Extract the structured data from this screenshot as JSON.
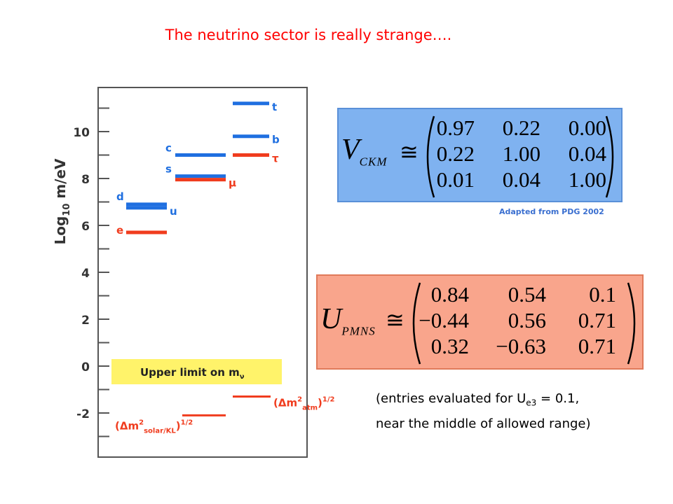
{
  "title": "The neutrino sector is really strange….",
  "colors": {
    "title": "#ff0000",
    "quark": "#1f6fe0",
    "lepton": "#f03c1e",
    "frame": "#555555",
    "band": "#fff36a"
  },
  "mass_chart": {
    "axis_label_main": "Log",
    "axis_label_sub": "10",
    "axis_label_rest": " m/eV",
    "ticks": [
      "10",
      "8",
      "6",
      "4",
      "2",
      "0",
      "-2"
    ],
    "tick_values": [
      10,
      8,
      6,
      4,
      2,
      0,
      -2
    ],
    "ylim": [
      -3.8,
      12
    ],
    "levels": [
      {
        "label": "t",
        "family": "quark",
        "column": 4,
        "value": 11.2
      },
      {
        "label": "b",
        "family": "quark",
        "column": 4,
        "value": 9.8
      },
      {
        "label": "τ",
        "family": "lepton",
        "column": 4,
        "value": 9.0
      },
      {
        "label": "c",
        "family": "quark",
        "column": 3,
        "value": 9.0
      },
      {
        "label": "s",
        "family": "quark",
        "column": 3,
        "value": 8.1
      },
      {
        "label": "μ",
        "family": "lepton",
        "column": 3,
        "value": 7.95
      },
      {
        "label": "d",
        "family": "quark",
        "column": 2,
        "value": 6.9
      },
      {
        "label": "u",
        "family": "quark",
        "column": 2,
        "value": 6.75
      },
      {
        "label": "e",
        "family": "lepton",
        "column": 2,
        "value": 5.7
      }
    ],
    "band_label": "Upper limit on m",
    "band_label_sub": "ν",
    "nu_levels": [
      {
        "label_main": "(Δm",
        "label_sup": "2",
        "label_sub": "atm",
        "label_end": ")",
        "label_pow": "1/2",
        "value": -1.3
      },
      {
        "label_main": "(Δm",
        "label_sup": "2",
        "label_sub": "solar/KL",
        "label_end": ")",
        "label_pow": "1/2",
        "value": -2.1
      }
    ]
  },
  "ckm": {
    "symbol": "V",
    "subscript": "CKM",
    "relation": "≅",
    "rows": [
      [
        "0.97",
        "0.22",
        "0.00"
      ],
      [
        "0.22",
        "1.00",
        "0.04"
      ],
      [
        "0.01",
        "0.04",
        "1.00"
      ]
    ],
    "credit": "Adapted from PDG 2002"
  },
  "pmns": {
    "symbol": "U",
    "subscript": "PMNS",
    "relation": "≅",
    "rows": [
      [
        "0.84",
        "0.54",
        "0.1"
      ],
      [
        "−0.44",
        "0.56",
        "0.71"
      ],
      [
        "0.32",
        "−0.63",
        "0.71"
      ]
    ]
  },
  "note": {
    "line1_pre": "(entries evaluated for U",
    "line1_sub": "e3",
    "line1_post": " = 0.1,",
    "line2": "near the middle of allowed range)"
  }
}
